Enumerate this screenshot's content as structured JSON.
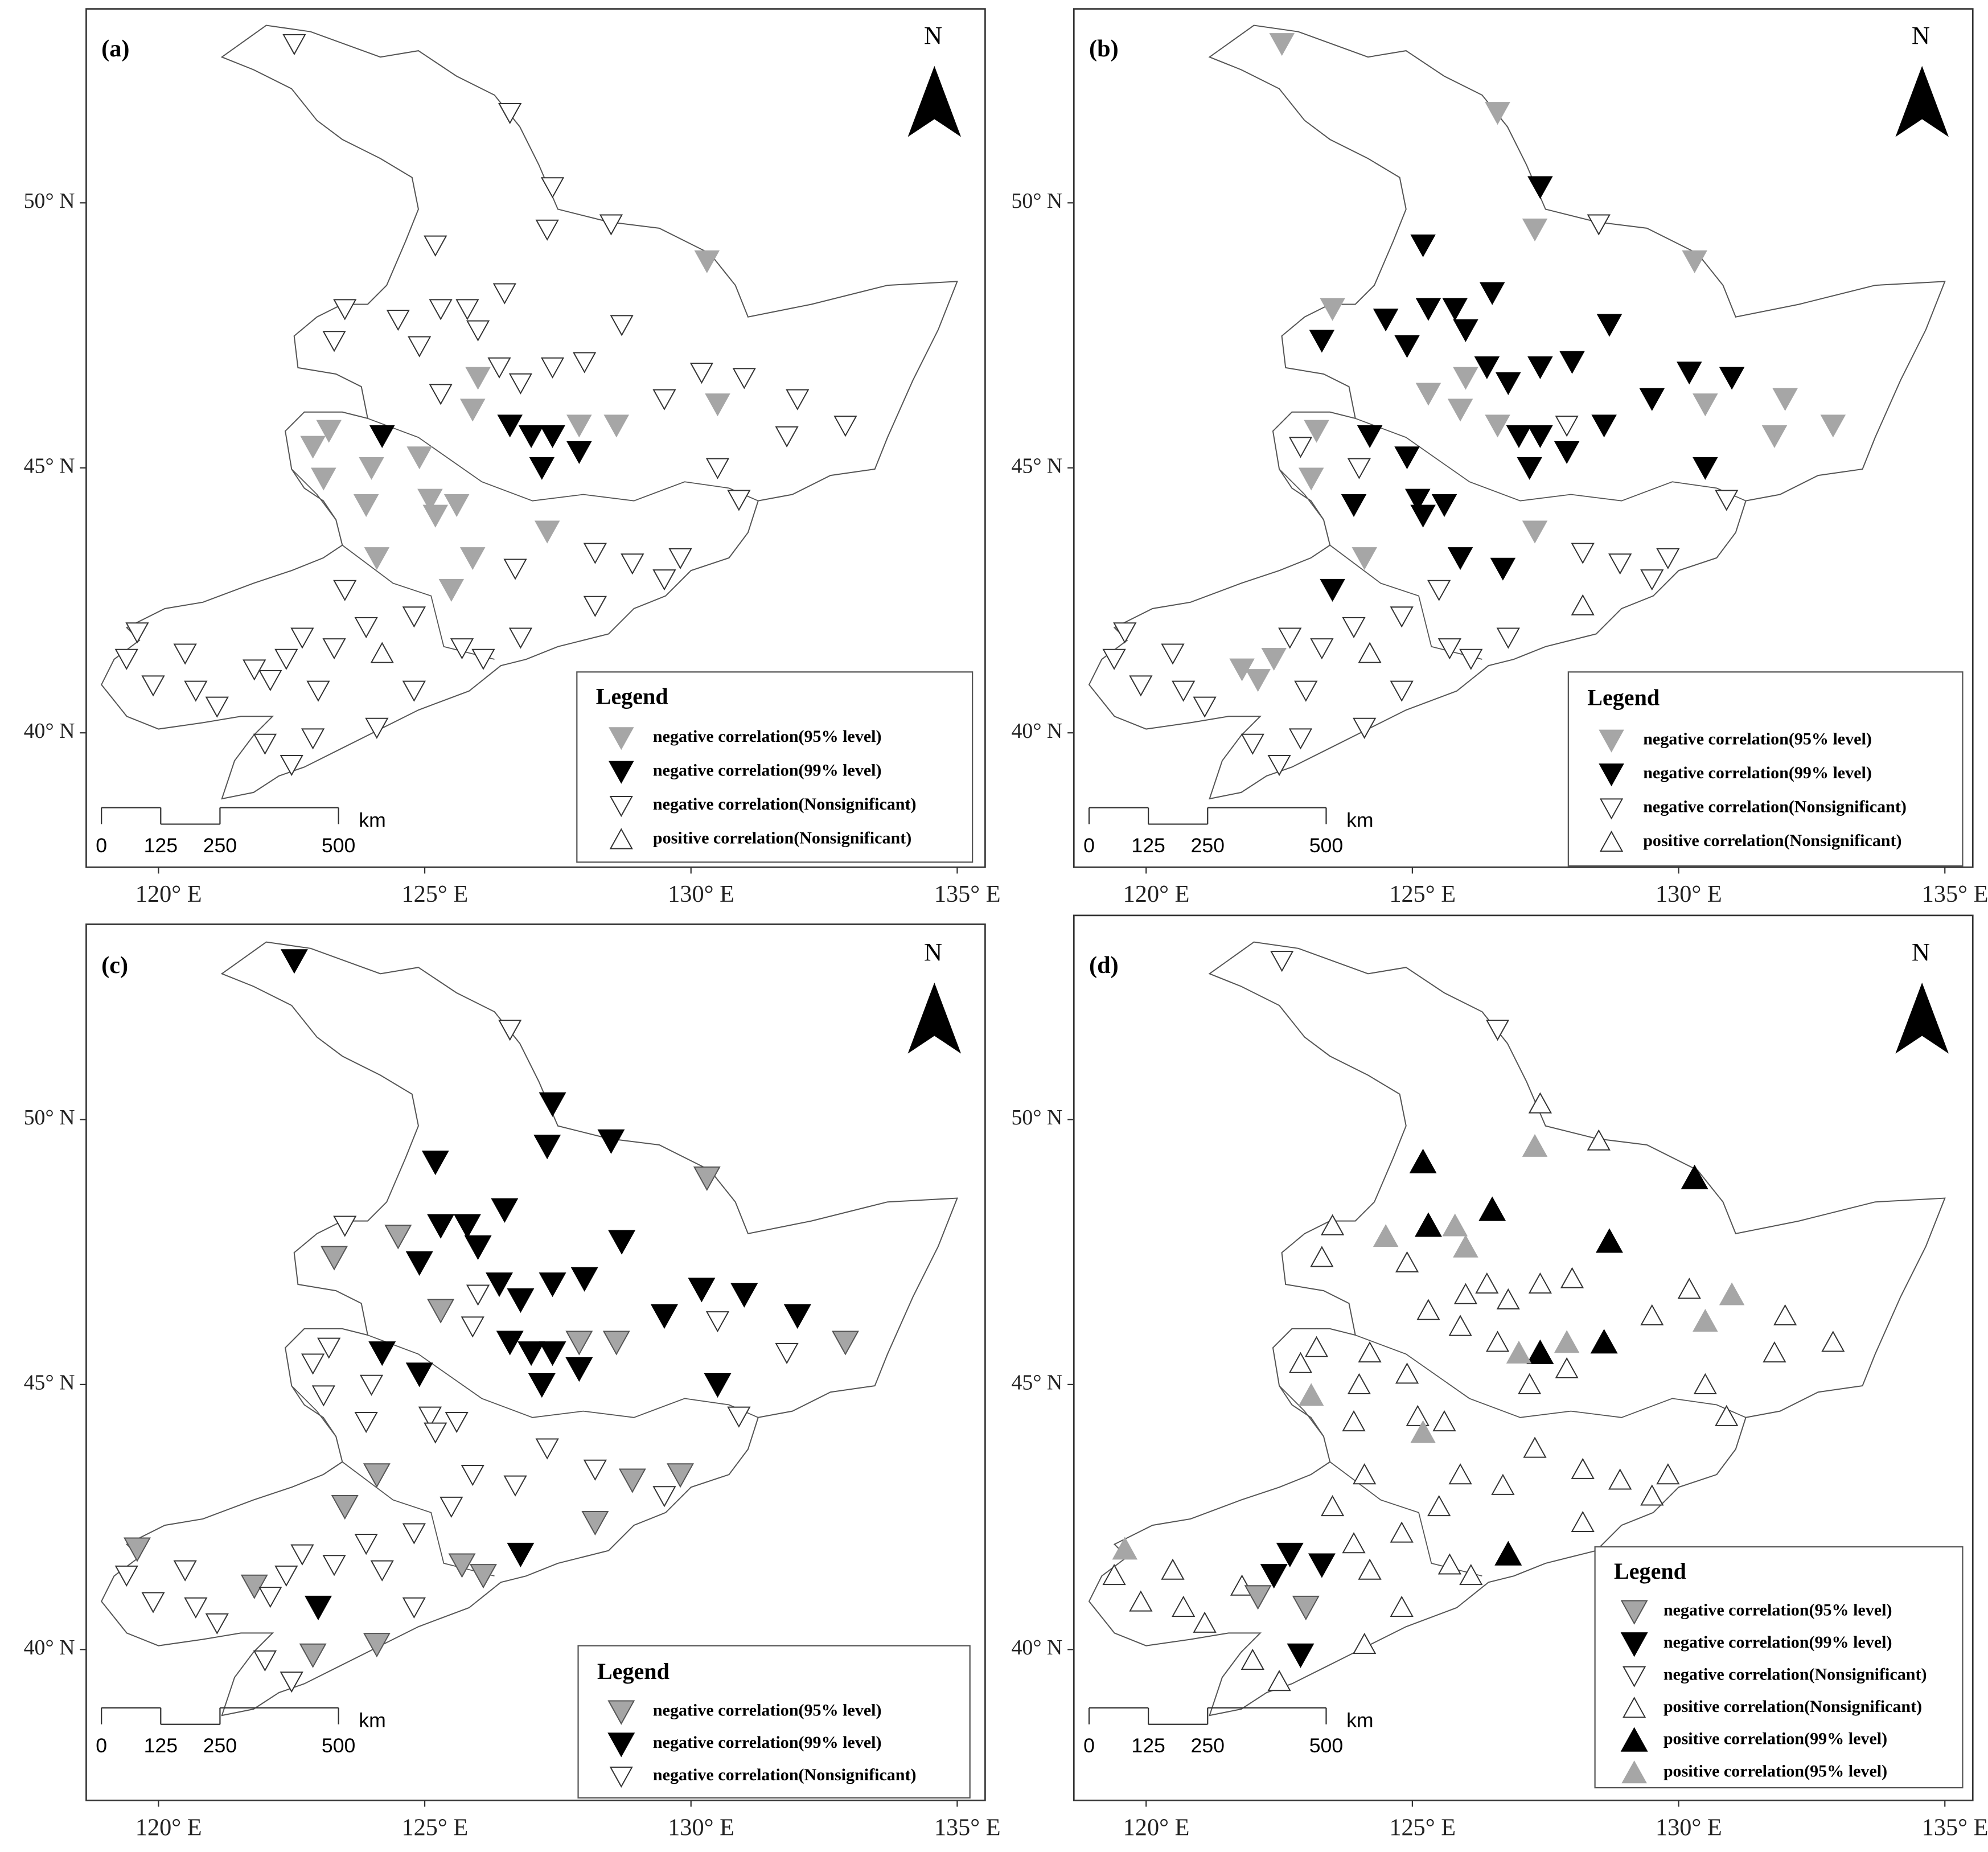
{
  "xlim": [
    118.643,
    135.524
  ],
  "ylim": [
    37.464,
    53.66
  ],
  "lon_ticks": [
    {
      "value": 120,
      "label": "120° E"
    },
    {
      "value": 125,
      "label": "125° E"
    },
    {
      "value": 130,
      "label": "130° E"
    },
    {
      "value": 135,
      "label": "135° E"
    }
  ],
  "lat_ticks": [
    {
      "value": 40,
      "label": "40° N"
    },
    {
      "value": 45,
      "label": "45° N"
    },
    {
      "value": 50,
      "label": "50° N"
    }
  ],
  "stations": {
    "lon": [
      122.55,
      126.6,
      127.4,
      127.3,
      128.5,
      130.3,
      125.2,
      123.5,
      123.3,
      124.5,
      125.3,
      125.8,
      126.5,
      124.9,
      126.0,
      126.4,
      126.0,
      126.8,
      127.4,
      128.0,
      128.7,
      130.2,
      131.0,
      129.5,
      130.5,
      132.0,
      132.9,
      131.8,
      130.5,
      130.9,
      128.6,
      127.9,
      127.4,
      126.6,
      125.9,
      125.3,
      124.2,
      124.9,
      127.0,
      127.2,
      127.9,
      123.2,
      122.9,
      123.1,
      124.0,
      123.9,
      125.1,
      125.6,
      125.2,
      125.9,
      125.5,
      126.7,
      127.3,
      128.2,
      128.9,
      129.8,
      129.5,
      128.2,
      126.8,
      123.5,
      124.1,
      123.3,
      124.8,
      124.2,
      123.0,
      122.4,
      121.8,
      122.1,
      120.5,
      119.6,
      119.4,
      119.9,
      120.7,
      121.1,
      122.0,
      122.5,
      122.9,
      124.1,
      124.8,
      123.9,
      122.7,
      125.7,
      126.1
    ],
    "lat": [
      53.0,
      51.7,
      50.3,
      49.5,
      49.6,
      48.9,
      49.2,
      48.0,
      47.4,
      47.8,
      48.0,
      48.0,
      48.3,
      47.3,
      47.6,
      46.9,
      46.7,
      46.6,
      46.9,
      47.0,
      47.7,
      46.8,
      46.7,
      46.3,
      46.2,
      46.3,
      45.8,
      45.6,
      45.0,
      44.4,
      45.8,
      45.8,
      45.6,
      45.8,
      46.1,
      46.4,
      45.6,
      45.2,
      45.6,
      45.0,
      45.3,
      45.7,
      45.4,
      44.8,
      45.0,
      44.3,
      44.4,
      44.3,
      44.1,
      43.3,
      42.7,
      43.1,
      43.8,
      43.4,
      43.2,
      43.3,
      42.9,
      42.4,
      41.8,
      42.7,
      43.3,
      41.6,
      42.2,
      41.5,
      40.8,
      41.4,
      41.2,
      41.0,
      41.5,
      41.9,
      41.4,
      40.9,
      40.8,
      40.5,
      39.8,
      39.4,
      39.9,
      40.1,
      40.8,
      42.0,
      41.8,
      41.6,
      41.4
    ]
  },
  "panels": [
    {
      "label": "(a)",
      "north": "N",
      "legend": {
        "title": "Legend",
        "items": [
          {
            "label": "negative correlation(95% level)",
            "shape": "down",
            "fill": "#a6a6a6",
            "stroke": "none"
          },
          {
            "label": "negative correlation(99% level)",
            "shape": "down",
            "fill": "#000000",
            "stroke": "none"
          },
          {
            "label": "negative correlation(Nonsignificant)",
            "shape": "down",
            "fill": "#ffffff",
            "stroke": "#333333"
          },
          {
            "label": "positive correlation(Nonsignificant)",
            "shape": "up",
            "fill": "#ffffff",
            "stroke": "#333333"
          }
        ]
      },
      "scale_bar": {
        "ticks": [
          0,
          125,
          250,
          500
        ],
        "unit": "km"
      },
      "classes": [
        2,
        2,
        2,
        2,
        2,
        0,
        2,
        2,
        2,
        2,
        2,
        2,
        2,
        2,
        2,
        2,
        0,
        2,
        2,
        2,
        2,
        2,
        2,
        2,
        0,
        2,
        2,
        2,
        2,
        2,
        0,
        0,
        1,
        1,
        0,
        2,
        1,
        0,
        1,
        1,
        1,
        0,
        0,
        0,
        0,
        0,
        0,
        0,
        0,
        0,
        0,
        2,
        0,
        2,
        2,
        2,
        2,
        2,
        2,
        2,
        0,
        2,
        2,
        3,
        2,
        2,
        2,
        2,
        2,
        2,
        2,
        2,
        2,
        2,
        2,
        2,
        2,
        2,
        2,
        2,
        2,
        2,
        2
      ]
    },
    {
      "label": "(b)",
      "north": "N",
      "legend": {
        "title": "Legend",
        "items": [
          {
            "label": "negative correlation(95% level)",
            "shape": "down",
            "fill": "#a6a6a6",
            "stroke": "none"
          },
          {
            "label": "negative correlation(99% level)",
            "shape": "down",
            "fill": "#000000",
            "stroke": "none"
          },
          {
            "label": "negative correlation(Nonsignificant)",
            "shape": "down",
            "fill": "#ffffff",
            "stroke": "#333333"
          },
          {
            "label": "positive correlation(Nonsignificant)",
            "shape": "up",
            "fill": "#ffffff",
            "stroke": "#333333"
          }
        ]
      },
      "scale_bar": {
        "ticks": [
          0,
          125,
          250,
          500
        ],
        "unit": "km"
      },
      "classes": [
        0,
        0,
        1,
        0,
        2,
        0,
        1,
        0,
        1,
        1,
        1,
        1,
        1,
        1,
        1,
        1,
        0,
        1,
        1,
        1,
        1,
        1,
        1,
        1,
        0,
        0,
        0,
        0,
        1,
        2,
        1,
        2,
        1,
        0,
        0,
        0,
        1,
        1,
        1,
        1,
        1,
        0,
        2,
        0,
        2,
        1,
        1,
        1,
        1,
        1,
        2,
        1,
        0,
        2,
        2,
        2,
        2,
        3,
        2,
        1,
        0,
        2,
        2,
        3,
        2,
        0,
        0,
        0,
        2,
        2,
        2,
        2,
        2,
        2,
        2,
        2,
        2,
        2,
        2,
        2,
        2,
        2,
        2
      ]
    },
    {
      "label": "(c)",
      "north": "N",
      "legend": {
        "title": "Legend",
        "items": [
          {
            "label": "negative correlation(95% level)",
            "shape": "down",
            "fill": "#a6a6a6",
            "stroke": "#555555"
          },
          {
            "label": "negative correlation(99% level)",
            "shape": "down",
            "fill": "#000000",
            "stroke": "#000000"
          },
          {
            "label": "negative correlation(Nonsignificant)",
            "shape": "down",
            "fill": "#ffffff",
            "stroke": "#333333"
          }
        ]
      },
      "scale_bar": {
        "ticks": [
          0,
          125,
          250,
          500
        ],
        "unit": "km"
      },
      "classes": [
        1,
        2,
        1,
        1,
        1,
        0,
        1,
        2,
        0,
        0,
        1,
        1,
        1,
        1,
        1,
        1,
        2,
        1,
        1,
        1,
        1,
        1,
        1,
        1,
        2,
        1,
        0,
        2,
        1,
        2,
        0,
        0,
        1,
        1,
        2,
        0,
        1,
        1,
        1,
        1,
        1,
        2,
        2,
        2,
        2,
        2,
        2,
        2,
        2,
        2,
        2,
        2,
        2,
        2,
        0,
        0,
        2,
        0,
        1,
        0,
        0,
        2,
        2,
        2,
        1,
        2,
        0,
        2,
        2,
        0,
        2,
        2,
        2,
        2,
        2,
        2,
        0,
        0,
        2,
        2,
        2,
        0,
        0
      ]
    },
    {
      "label": "(d)",
      "north": "N",
      "legend": {
        "title": "Legend",
        "items": [
          {
            "label": "negative correlation(95% level)",
            "shape": "down",
            "fill": "#a6a6a6",
            "stroke": "#555555"
          },
          {
            "label": "negative correlation(99% level)",
            "shape": "down",
            "fill": "#000000",
            "stroke": "#000000"
          },
          {
            "label": "negative correlation(Nonsignificant)",
            "shape": "down",
            "fill": "#ffffff",
            "stroke": "#333333"
          },
          {
            "label": "positive correlation(Nonsignificant)",
            "shape": "up",
            "fill": "#ffffff",
            "stroke": "#333333"
          },
          {
            "label": "positive correlation(99% level)",
            "shape": "up",
            "fill": "#000000",
            "stroke": "#000000"
          },
          {
            "label": "positive correlation(95% level)",
            "shape": "up",
            "fill": "#a6a6a6",
            "stroke": "none"
          }
        ]
      },
      "scale_bar": {
        "ticks": [
          0,
          125,
          250,
          500
        ],
        "unit": "km"
      },
      "classes": [
        2,
        2,
        3,
        5,
        3,
        4,
        4,
        3,
        3,
        5,
        4,
        5,
        4,
        3,
        5,
        3,
        3,
        3,
        3,
        3,
        4,
        3,
        5,
        3,
        5,
        3,
        3,
        3,
        3,
        3,
        4,
        5,
        4,
        3,
        3,
        3,
        3,
        3,
        5,
        3,
        3,
        3,
        3,
        5,
        3,
        3,
        3,
        3,
        5,
        3,
        3,
        3,
        3,
        3,
        3,
        3,
        3,
        3,
        4,
        3,
        3,
        1,
        3,
        3,
        0,
        1,
        3,
        0,
        3,
        5,
        3,
        3,
        3,
        3,
        3,
        3,
        1,
        3,
        3,
        3,
        1,
        3,
        3
      ]
    }
  ]
}
